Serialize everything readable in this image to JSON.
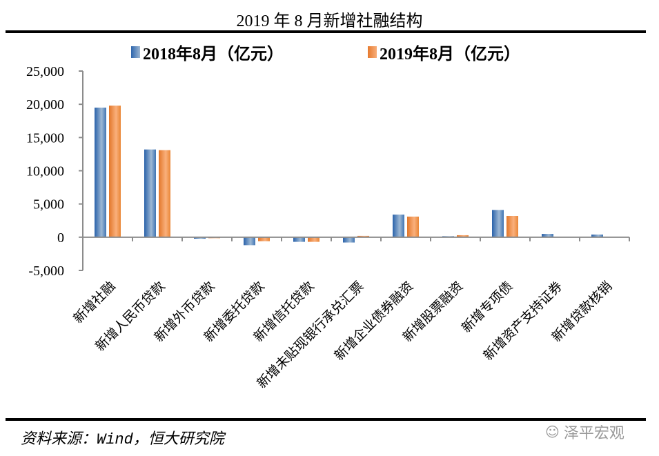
{
  "chart_data": {
    "type": "bar",
    "title": "2019 年 8 月新增社融结构",
    "xlabel": "",
    "ylabel": "",
    "ylim": [
      -5000,
      25000
    ],
    "yticks": [
      25000,
      20000,
      15000,
      10000,
      5000,
      0,
      -5000
    ],
    "ytick_labels": [
      "25,000",
      "20,000",
      "15,000",
      "10,000",
      "5,000",
      "0",
      "-5,000"
    ],
    "grid": false,
    "legend_position": "top",
    "categories": [
      "新增社融",
      "新增人民币贷款",
      "新增外币贷款",
      "新增委托贷款",
      "新增信托贷款",
      "新增未贴现银行承兑汇票",
      "新增企业债券融资",
      "新增股票融资",
      "新增专项债",
      "新增资产支持证券",
      "新增贷款核销"
    ],
    "series": [
      {
        "name": "2018年8月（亿元）",
        "color": "#3a72b4",
        "values": [
          19500,
          13200,
          -230,
          -1200,
          -700,
          -800,
          3400,
          150,
          4100,
          500,
          400
        ]
      },
      {
        "name": "2019年8月（亿元）",
        "color": "#ee8a3c",
        "values": [
          19800,
          13100,
          -150,
          -600,
          -700,
          200,
          3100,
          300,
          3200,
          0,
          0
        ]
      }
    ]
  },
  "source": "资料来源：Wind，恒大研究院",
  "watermark": "泽平宏观"
}
